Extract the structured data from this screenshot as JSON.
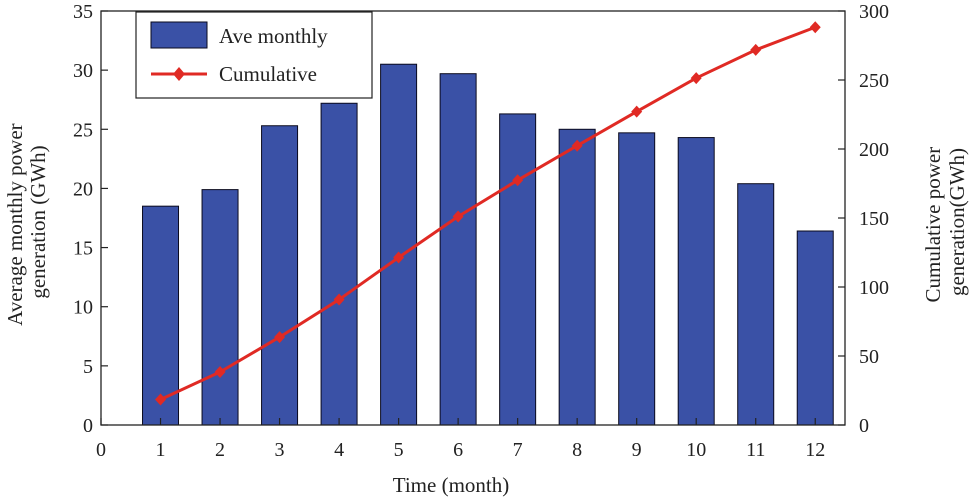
{
  "chart_data": {
    "type": "bar+line",
    "x_ticks": [
      "0",
      "1",
      "2",
      "3",
      "4",
      "5",
      "6",
      "7",
      "8",
      "9",
      "10",
      "11",
      "12"
    ],
    "xlim": [
      0,
      12.5
    ],
    "xlabel": "Time (month)",
    "ylabel_left": [
      "Average monthly power",
      "generation (GWh)"
    ],
    "ylabel_right": [
      "Cumulative power",
      "generation(GWh)"
    ],
    "ylim_left": [
      0,
      35
    ],
    "ylim_right": [
      0,
      300
    ],
    "yticks_left": [
      "0",
      "5",
      "10",
      "15",
      "20",
      "25",
      "30",
      "35"
    ],
    "yticks_right": [
      "0",
      "50",
      "100",
      "150",
      "200",
      "250",
      "300"
    ],
    "grid": false,
    "legend_position": "top-left",
    "series": [
      {
        "name": "Ave monthly",
        "type": "bar",
        "axis": "left",
        "x": [
          1,
          2,
          3,
          4,
          5,
          6,
          7,
          8,
          9,
          10,
          11,
          12
        ],
        "values": [
          18.5,
          19.9,
          25.3,
          27.2,
          30.5,
          29.7,
          26.3,
          25.0,
          24.7,
          24.3,
          20.4,
          16.4
        ],
        "color": "#3a51a6",
        "edge_color": "#0a0a1e"
      },
      {
        "name": "Cumulative",
        "type": "line",
        "axis": "right",
        "marker": "diamond",
        "x": [
          1,
          2,
          3,
          4,
          5,
          6,
          7,
          8,
          9,
          10,
          11,
          12
        ],
        "values": [
          18.5,
          38.4,
          63.7,
          90.9,
          121.4,
          151.1,
          177.4,
          202.4,
          227.1,
          251.4,
          271.8,
          288.2
        ],
        "color": "#e02a24"
      }
    ]
  }
}
